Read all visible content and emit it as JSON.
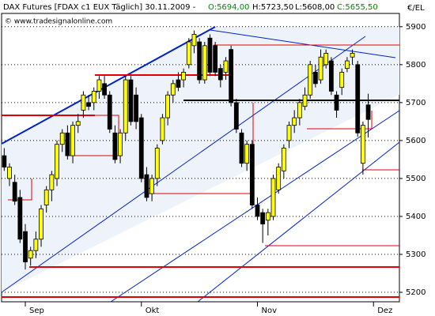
{
  "chart_data": {
    "type": "candlestick",
    "header": {
      "title": "DAX Futures [FDAX c1 EUX  Täglich] 30.11.2009 -",
      "open": "O:5694,00",
      "high": "H:5723,50",
      "low": "L:5608,00",
      "close": "C:5655,50"
    },
    "watermark": "© www.tradesignalonline.com",
    "y_label": "€/EL",
    "categories": [
      null,
      null,
      null,
      null,
      "Sep",
      null,
      null,
      null,
      null,
      null,
      null,
      null,
      null,
      null,
      null,
      null,
      null,
      null,
      null,
      null,
      null,
      null,
      null,
      null,
      null,
      null,
      "Okt",
      null,
      null,
      null,
      null,
      null,
      null,
      null,
      null,
      null,
      null,
      null,
      null,
      null,
      null,
      null,
      null,
      null,
      null,
      null,
      null,
      null,
      "Nov",
      null,
      null,
      null,
      null,
      null,
      null,
      null,
      null,
      null,
      null,
      null,
      null,
      null,
      null,
      null,
      null,
      null,
      null,
      null,
      null,
      null,
      "Dez"
    ],
    "open": [
      5560,
      5500,
      5490,
      5450,
      5360,
      5290,
      5310,
      5340,
      5430,
      5470,
      5500,
      5590,
      5620,
      5560,
      5640,
      5680,
      5700,
      5700,
      5730,
      5750,
      5720,
      5620,
      5560,
      5620,
      5760,
      5720,
      5660,
      5510,
      5460,
      5500,
      5600,
      5660,
      5720,
      5760,
      5760,
      5800,
      5850,
      5860,
      5760,
      5870,
      5850,
      5790,
      5780,
      5840,
      5700,
      5620,
      5540,
      5590,
      5430,
      5410,
      5390,
      5400,
      5470,
      5520,
      5600,
      5640,
      5660,
      5690,
      5720,
      5780,
      5760,
      5800,
      5810,
      5720,
      5740,
      5790,
      5820,
      5800,
      5540,
      5694,
      null
    ],
    "high": [
      5580,
      5540,
      5510,
      5470,
      5380,
      5320,
      5360,
      5430,
      5480,
      5520,
      5600,
      5630,
      5640,
      5650,
      5670,
      5730,
      5720,
      5740,
      5770,
      5770,
      5730,
      5640,
      5630,
      5770,
      5770,
      5740,
      5670,
      5530,
      5510,
      5590,
      5670,
      5730,
      5760,
      5780,
      5790,
      5870,
      5890,
      5870,
      5860,
      5880,
      5860,
      5800,
      5820,
      5850,
      5710,
      5630,
      5600,
      5600,
      5450,
      5420,
      5420,
      5510,
      5540,
      5590,
      5650,
      5680,
      5710,
      5740,
      5810,
      5800,
      5840,
      5840,
      5820,
      5730,
      5790,
      5820,
      5840,
      5810,
      5650,
      5723.5,
      null
    ],
    "low": [
      5520,
      5480,
      5430,
      5330,
      5260,
      5270,
      5290,
      5320,
      5410,
      5440,
      5480,
      5570,
      5550,
      5540,
      5620,
      5660,
      5680,
      5680,
      5710,
      5710,
      5620,
      5540,
      5540,
      5600,
      5640,
      5630,
      5490,
      5440,
      5440,
      5480,
      5590,
      5640,
      5700,
      5730,
      5740,
      5790,
      5830,
      5750,
      5750,
      5770,
      5770,
      5740,
      5760,
      5690,
      5620,
      5530,
      5520,
      5420,
      5390,
      5330,
      5350,
      5390,
      5460,
      5500,
      5580,
      5620,
      5640,
      5680,
      5710,
      5740,
      5750,
      5790,
      5720,
      5660,
      5720,
      5780,
      5800,
      5610,
      5510,
      5608,
      null
    ],
    "close": [
      5530,
      5530,
      5440,
      5340,
      5280,
      5310,
      5340,
      5420,
      5470,
      5510,
      5590,
      5620,
      5560,
      5640,
      5650,
      5720,
      5690,
      5730,
      5760,
      5720,
      5630,
      5550,
      5620,
      5760,
      5650,
      5650,
      5500,
      5450,
      5500,
      5580,
      5660,
      5720,
      5750,
      5740,
      5780,
      5860,
      5880,
      5760,
      5850,
      5780,
      5780,
      5760,
      5810,
      5700,
      5630,
      5540,
      5590,
      5430,
      5400,
      5380,
      5410,
      5500,
      5530,
      5580,
      5640,
      5660,
      5700,
      5720,
      5800,
      5750,
      5820,
      5830,
      5730,
      5680,
      5780,
      5810,
      5830,
      5620,
      5640,
      5655.5,
      null
    ],
    "up_color": "#ffff00",
    "down_color": "#000000",
    "ylim": [
      5175,
      5935
    ],
    "yticks": [
      5200,
      5300,
      5400,
      5500,
      5600,
      5700,
      5800,
      5900
    ],
    "grid": true
  }
}
